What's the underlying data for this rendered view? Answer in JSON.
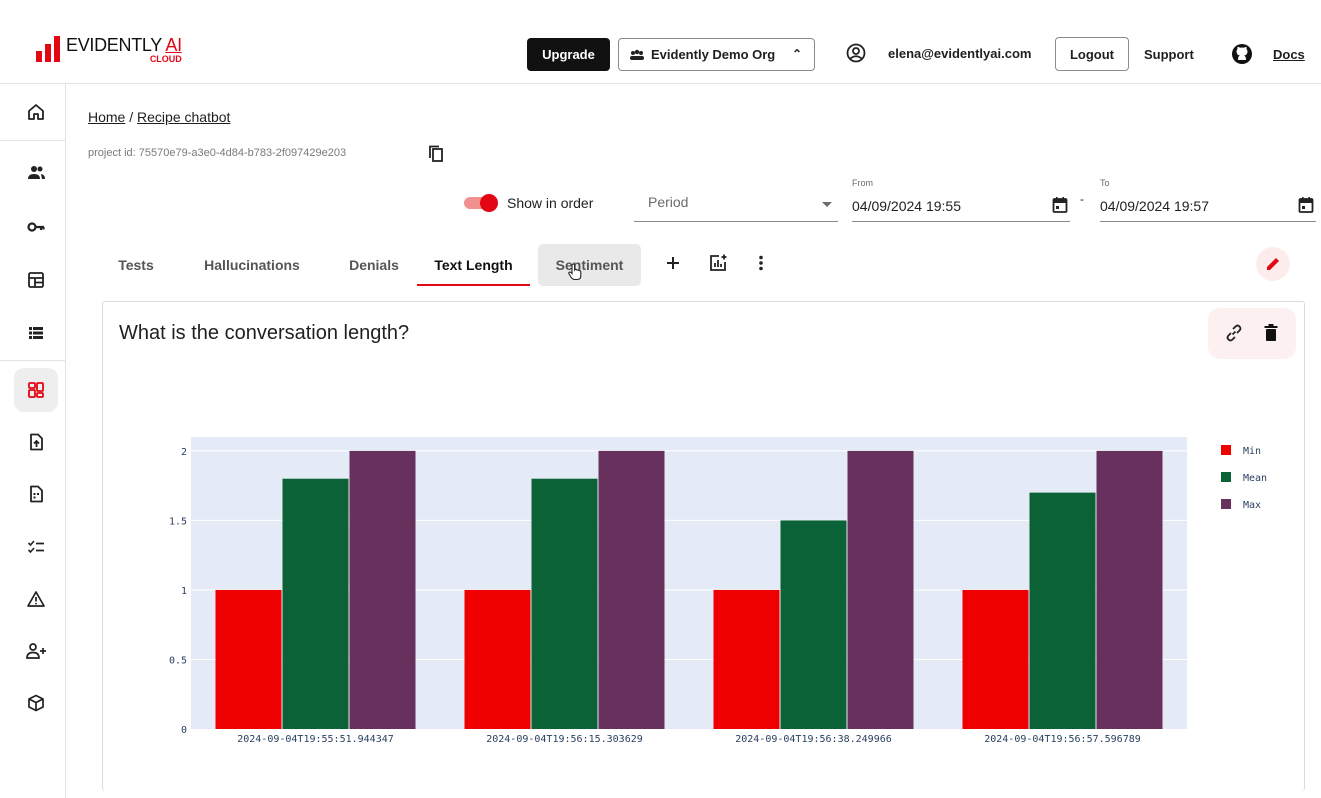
{
  "header": {
    "logo_main_a": "EVIDENTLY",
    "logo_main_b": "AI",
    "logo_sub": "CLOUD",
    "upgrade": "Upgrade",
    "org": "Evidently Demo Org",
    "email": "elena@evidentlyai.com",
    "logout": "Logout",
    "support": "Support",
    "docs": "Docs"
  },
  "sidebar": {
    "items": [
      "home-icon",
      "team-icon",
      "key-icon",
      "dashboard-icon",
      "list-icon",
      "projects-icon",
      "upload-icon",
      "datasets-icon",
      "tests-icon",
      "alerts-icon",
      "add-user-icon",
      "package-icon"
    ],
    "active": "projects-icon"
  },
  "breadcrumb": {
    "home": "Home",
    "sep": "/",
    "project": "Recipe chatbot"
  },
  "project_id": "project id: 75570e79-a3e0-4d84-b783-2f097429e203",
  "filters": {
    "show_in_order": "Show in order",
    "show_in_order_on": true,
    "period_placeholder": "Period",
    "from_label": "From",
    "from_value": "04/09/2024 19:55",
    "separator": "-",
    "to_label": "To",
    "to_value": "04/09/2024 19:57"
  },
  "tabs": [
    {
      "label": "Tests"
    },
    {
      "label": "Hallucinations"
    },
    {
      "label": "Denials"
    },
    {
      "label": "Text Length"
    },
    {
      "label": "Sentiment"
    }
  ],
  "active_tab": "Text Length",
  "panel": {
    "title": "What is the conversation length?"
  },
  "colors": {
    "accent": "#e30613",
    "min": "#ee0000",
    "mean": "#0a6236",
    "max": "#68305c",
    "plot_bg": "#e5ebf6"
  },
  "chart_data": {
    "type": "bar",
    "categories": [
      "2024-09-04T19:55:51.944347",
      "2024-09-04T19:56:15.303629",
      "2024-09-04T19:56:38.249966",
      "2024-09-04T19:56:57.596789"
    ],
    "series": [
      {
        "name": "Min",
        "values": [
          1,
          1,
          1,
          1
        ]
      },
      {
        "name": "Mean",
        "values": [
          1.8,
          1.8,
          1.5,
          1.7
        ]
      },
      {
        "name": "Max",
        "values": [
          2,
          2,
          2,
          2
        ]
      }
    ],
    "yticks": [
      "0",
      "0.5",
      "1",
      "1.5",
      "2"
    ],
    "ylim": [
      0,
      2.1
    ],
    "grid": true,
    "legend": "right"
  }
}
